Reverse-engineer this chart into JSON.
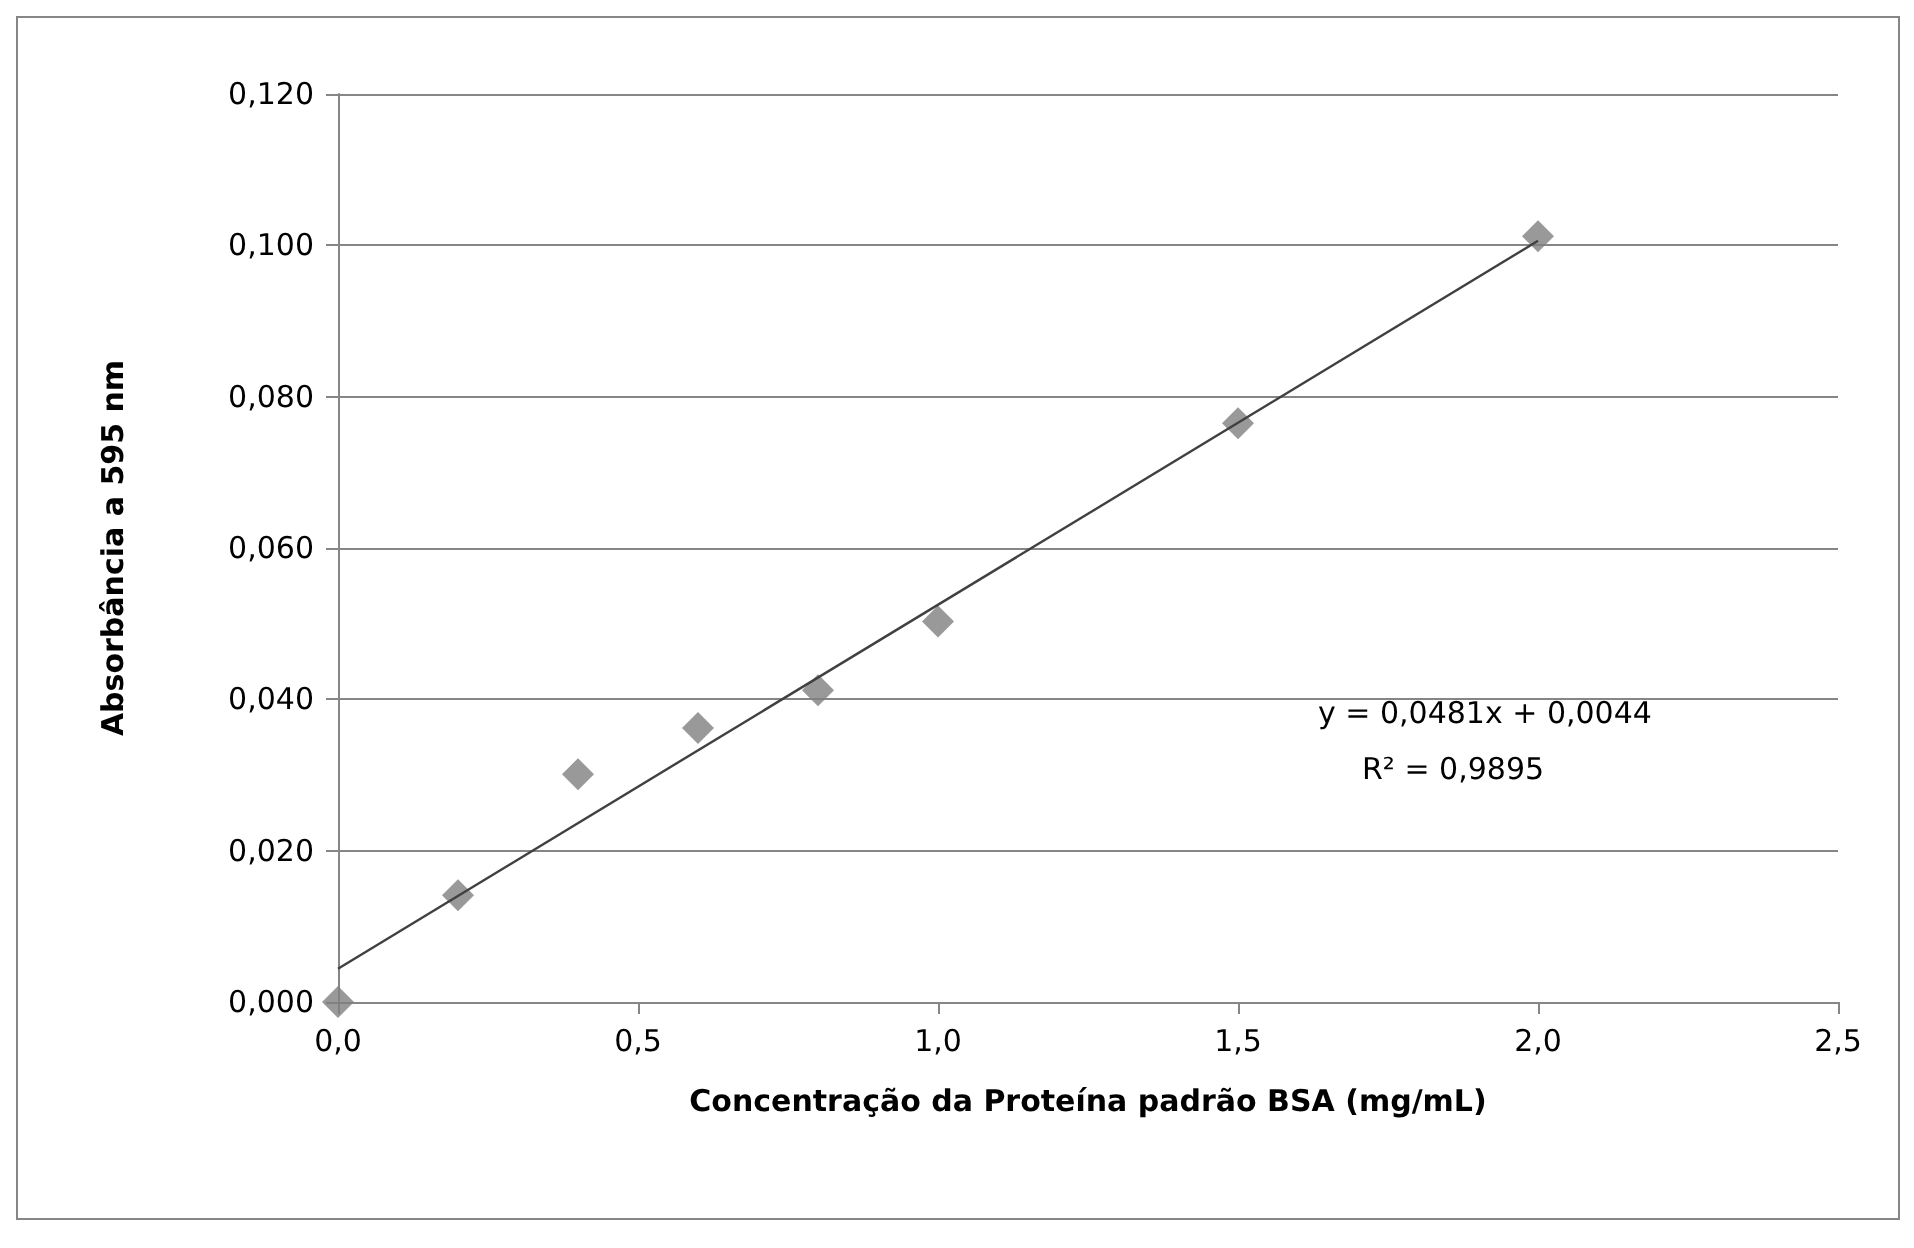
{
  "chart_data": {
    "type": "scatter",
    "xlabel": "Concentração da Proteína padrão BSA (mg/mL)",
    "ylabel": "Absorbância a 595 nm",
    "series": [
      {
        "color": "#7f7f7f",
        "marker": "diamond",
        "x": [
          0,
          0.2,
          0.4,
          0.6,
          0.8,
          1.0,
          1.5,
          2.0
        ],
        "values": [
          0,
          0.0141,
          0.0301,
          0.0362,
          0.0412,
          0.0503,
          0.0765,
          0.1012
        ]
      },
      {
        "type": "line",
        "color": "#404040",
        "marker": "none",
        "x": [
          0,
          2.0
        ],
        "values": [
          0.0044,
          0.1006
        ]
      }
    ],
    "annotations": [
      "y = 0,0481x + 0,0044",
      "R² = 0,9895"
    ],
    "xlim": [
      0,
      2.5
    ],
    "xticks": [
      {
        "value": 0,
        "label": "0,0"
      },
      {
        "value": 0.5,
        "label": "0,5"
      },
      {
        "value": 1,
        "label": "1,0"
      },
      {
        "value": 1.5,
        "label": "1,5"
      },
      {
        "value": 2,
        "label": "2,0"
      },
      {
        "value": 2.5,
        "label": "2,5"
      }
    ],
    "ylim": [
      0,
      0.12
    ],
    "yticks": [
      {
        "value": 0,
        "label": "0,000"
      },
      {
        "value": 0.02,
        "label": "0,020"
      },
      {
        "value": 0.04,
        "label": "0,040"
      },
      {
        "value": 0.06,
        "label": "0,060"
      },
      {
        "value": 0.08,
        "label": "0,080"
      },
      {
        "value": 0.1,
        "label": "0,100"
      },
      {
        "value": 0.12,
        "label": "0,120"
      }
    ],
    "grid": "y"
  }
}
